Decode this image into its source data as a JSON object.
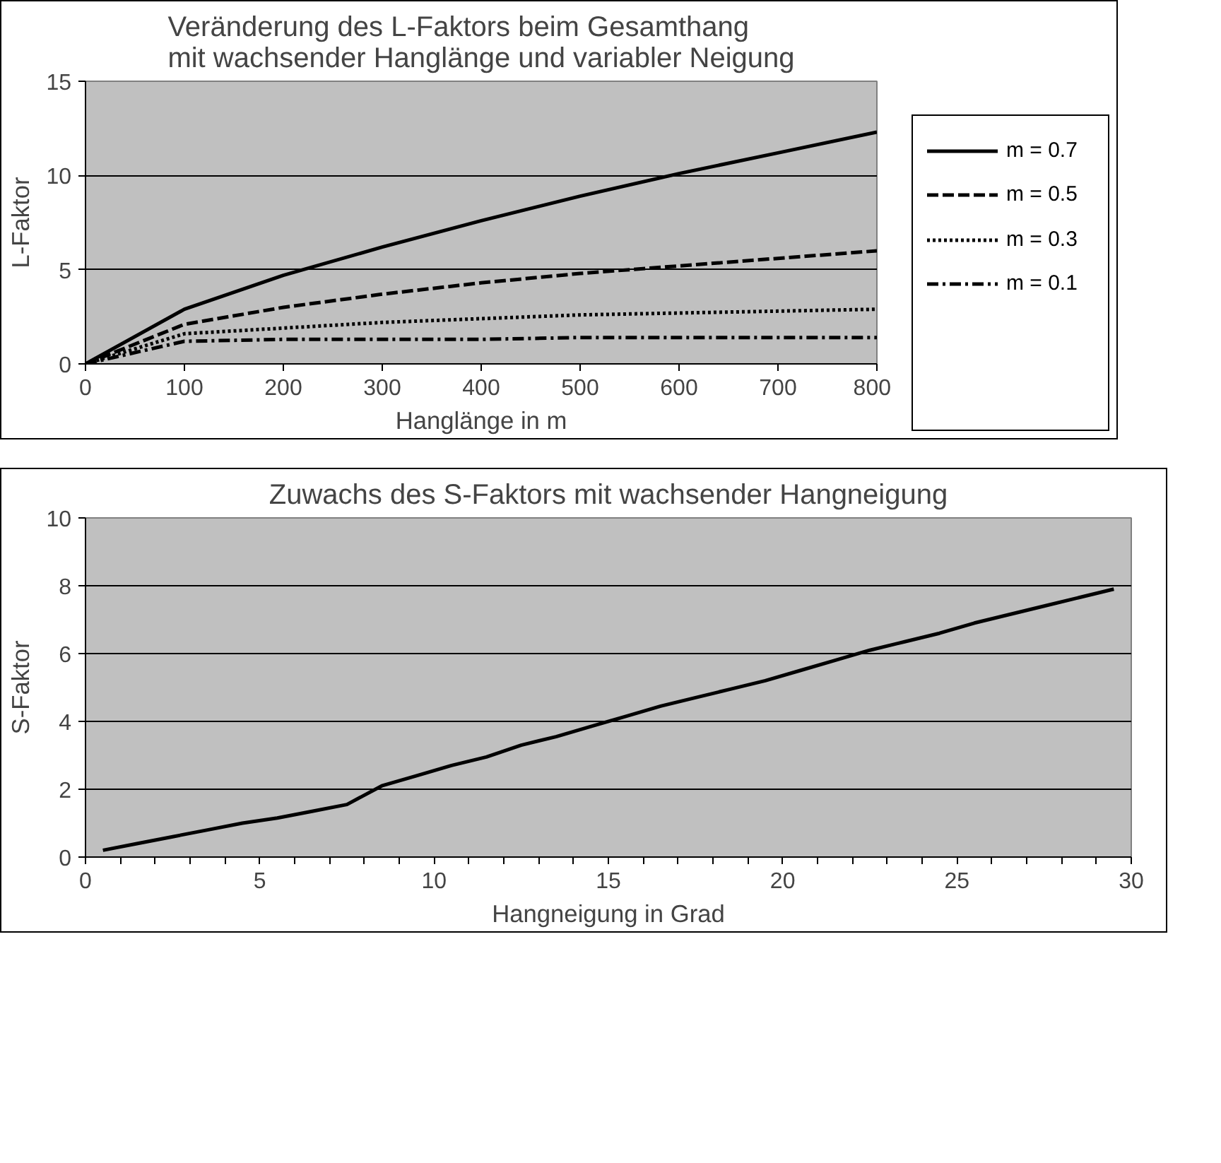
{
  "chart_data": [
    {
      "type": "line",
      "title": "Veränderung des L-Faktors beim Gesamthang mit wachsender Hanglänge und variabler Neigung",
      "xlabel": "Hanglänge in m",
      "ylabel": "L-Faktor",
      "x": [
        0,
        100,
        200,
        300,
        400,
        500,
        600,
        700,
        800
      ],
      "series": [
        {
          "name": "m = 0.7",
          "color": "#000000",
          "line_style": "solid",
          "values": [
            0,
            2.9,
            4.7,
            6.2,
            7.6,
            8.9,
            10.1,
            11.2,
            12.3
          ]
        },
        {
          "name": "m = 0.5",
          "color": "#000000",
          "line_style": "dashed",
          "values": [
            0,
            2.1,
            3.0,
            3.7,
            4.3,
            4.8,
            5.2,
            5.6,
            6.0
          ]
        },
        {
          "name": "m = 0.3",
          "color": "#000000",
          "line_style": "dotted",
          "values": [
            0,
            1.6,
            1.9,
            2.2,
            2.4,
            2.6,
            2.7,
            2.8,
            2.9
          ]
        },
        {
          "name": "m = 0.1",
          "color": "#000000",
          "line_style": "dashdot",
          "values": [
            0,
            1.2,
            1.3,
            1.3,
            1.3,
            1.4,
            1.4,
            1.4,
            1.4
          ]
        }
      ],
      "xlim": [
        0,
        800
      ],
      "xticks": [
        0,
        100,
        200,
        300,
        400,
        500,
        600,
        700,
        800
      ],
      "ylim": [
        0,
        15
      ],
      "yticks": [
        0,
        5,
        10,
        15
      ],
      "grid": "y",
      "legend": "right"
    },
    {
      "type": "line",
      "title": "Zuwachs des S-Faktors mit wachsender Hangneigung",
      "xlabel": "Hangneigung in Grad",
      "ylabel": "S-Faktor",
      "x": [
        0.5,
        1.5,
        2.5,
        3.5,
        4.5,
        5.5,
        6.5,
        7.5,
        8.5,
        9.5,
        10.5,
        11.5,
        12.5,
        13.5,
        14.5,
        15.5,
        16.5,
        17.5,
        18.5,
        19.5,
        20.5,
        21.5,
        22.5,
        23.5,
        24.5,
        25.5,
        26.5,
        27.5,
        28.5,
        29.5
      ],
      "series": [
        {
          "color": "#000000",
          "values": [
            0.2,
            0.4,
            0.6,
            0.8,
            1.0,
            1.15,
            1.35,
            1.55,
            2.1,
            2.4,
            2.7,
            2.95,
            3.3,
            3.55,
            3.85,
            4.15,
            4.45,
            4.7,
            4.95,
            5.2,
            5.5,
            5.8,
            6.1,
            6.35,
            6.6,
            6.9,
            7.15,
            7.4,
            7.65,
            7.9
          ]
        }
      ],
      "xlim": [
        0,
        30
      ],
      "xticks": [
        0,
        {
          "value": 1,
          "label": null
        },
        {
          "value": 2,
          "label": null
        },
        {
          "value": 3,
          "label": null
        },
        {
          "value": 4,
          "label": null
        },
        5,
        {
          "value": 6,
          "label": null
        },
        {
          "value": 7,
          "label": null
        },
        {
          "value": 8,
          "label": null
        },
        {
          "value": 9,
          "label": null
        },
        10,
        {
          "value": 11,
          "label": null
        },
        {
          "value": 12,
          "label": null
        },
        {
          "value": 13,
          "label": null
        },
        {
          "value": 14,
          "label": null
        },
        15,
        {
          "value": 16,
          "label": null
        },
        {
          "value": 17,
          "label": null
        },
        {
          "value": 18,
          "label": null
        },
        {
          "value": 19,
          "label": null
        },
        20,
        {
          "value": 21,
          "label": null
        },
        {
          "value": 22,
          "label": null
        },
        {
          "value": 23,
          "label": null
        },
        {
          "value": 24,
          "label": null
        },
        25,
        {
          "value": 26,
          "label": null
        },
        {
          "value": 27,
          "label": null
        },
        {
          "value": 28,
          "label": null
        },
        {
          "value": 29,
          "label": null
        },
        30
      ],
      "ylim": [
        0,
        10
      ],
      "yticks": [
        0,
        2,
        4,
        6,
        8,
        10
      ],
      "grid": "y",
      "legend": false
    }
  ]
}
